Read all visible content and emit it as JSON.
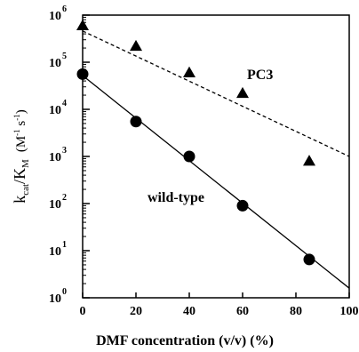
{
  "chart_data": {
    "type": "scatter",
    "title": "",
    "xlabel": "DMF concentration  (v/v) (%)",
    "ylabel": {
      "main": "k",
      "sub1": "cat",
      "mid": "/K",
      "sub2": "M",
      "unit_open": "(M",
      "unit_exp1": "-1",
      "unit_mid": " s",
      "unit_exp2": "-1",
      "unit_close": ")"
    },
    "xlim": [
      0,
      100
    ],
    "ylim_log10": [
      0,
      6
    ],
    "log_scale_y": true,
    "grid": false,
    "legend": "none",
    "x_ticks": [
      "0",
      "20",
      "40",
      "60",
      "80",
      "100"
    ],
    "y_ticks": [
      {
        "base": "10",
        "exp": "0"
      },
      {
        "base": "10",
        "exp": "1"
      },
      {
        "base": "10",
        "exp": "2"
      },
      {
        "base": "10",
        "exp": "3"
      },
      {
        "base": "10",
        "exp": "4"
      },
      {
        "base": "10",
        "exp": "5"
      },
      {
        "base": "10",
        "exp": "6"
      }
    ],
    "series": [
      {
        "name": "PC3",
        "marker": "triangle",
        "line_style": "dashed",
        "points": [
          {
            "x": 0,
            "y": 600000
          },
          {
            "x": 20,
            "y": 220000
          },
          {
            "x": 40,
            "y": 60000
          },
          {
            "x": 60,
            "y": 22000
          },
          {
            "x": 85,
            "y": 800
          }
        ],
        "fit": {
          "x": [
            0,
            100
          ],
          "y": [
            460000,
            1000
          ]
        }
      },
      {
        "name": "wild-type",
        "marker": "circle",
        "line_style": "solid",
        "points": [
          {
            "x": 0,
            "y": 56000
          },
          {
            "x": 20,
            "y": 5500
          },
          {
            "x": 40,
            "y": 1000
          },
          {
            "x": 60,
            "y": 90
          },
          {
            "x": 85,
            "y": 6.5
          }
        ],
        "fit": {
          "x": [
            0,
            100
          ],
          "y": [
            52000,
            1.6
          ]
        }
      }
    ]
  }
}
